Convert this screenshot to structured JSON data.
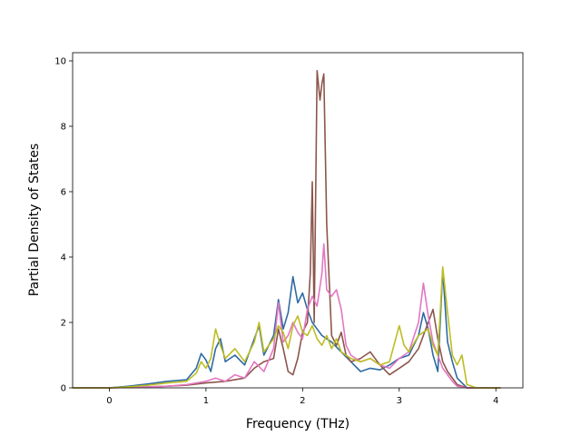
{
  "chart_data": {
    "type": "line",
    "xlabel": "Frequency (THz)",
    "ylabel": "Partial Density of States",
    "xlim": [
      -0.38,
      4.28
    ],
    "ylim": [
      0,
      10.25
    ],
    "xticks": [
      {
        "value": 0,
        "label": "0"
      },
      {
        "value": 1,
        "label": "1"
      },
      {
        "value": 2,
        "label": "2"
      },
      {
        "value": 3,
        "label": "3"
      },
      {
        "value": 4,
        "label": "4"
      }
    ],
    "yticks": [
      {
        "value": 0,
        "label": "0"
      },
      {
        "value": 2,
        "label": "2"
      },
      {
        "value": 4,
        "label": "4"
      },
      {
        "value": 6,
        "label": "6"
      },
      {
        "value": 8,
        "label": "8"
      },
      {
        "value": 10,
        "label": "10"
      }
    ],
    "grid": false,
    "legend": "none",
    "series": [
      {
        "color": "#2f6aa3",
        "points": [
          [
            -0.38,
            0
          ],
          [
            0,
            0
          ],
          [
            0.2,
            0.05
          ],
          [
            0.4,
            0.12
          ],
          [
            0.6,
            0.2
          ],
          [
            0.8,
            0.25
          ],
          [
            0.9,
            0.6
          ],
          [
            0.95,
            1.05
          ],
          [
            1.0,
            0.85
          ],
          [
            1.05,
            0.5
          ],
          [
            1.1,
            1.2
          ],
          [
            1.15,
            1.5
          ],
          [
            1.2,
            0.8
          ],
          [
            1.3,
            1.0
          ],
          [
            1.4,
            0.7
          ],
          [
            1.5,
            1.5
          ],
          [
            1.55,
            1.9
          ],
          [
            1.6,
            1.0
          ],
          [
            1.7,
            1.6
          ],
          [
            1.75,
            2.7
          ],
          [
            1.8,
            1.8
          ],
          [
            1.85,
            2.3
          ],
          [
            1.9,
            3.4
          ],
          [
            1.95,
            2.6
          ],
          [
            2.0,
            2.9
          ],
          [
            2.05,
            2.4
          ],
          [
            2.1,
            2.0
          ],
          [
            2.15,
            1.8
          ],
          [
            2.2,
            1.6
          ],
          [
            2.25,
            1.5
          ],
          [
            2.3,
            1.4
          ],
          [
            2.4,
            1.1
          ],
          [
            2.5,
            0.8
          ],
          [
            2.6,
            0.5
          ],
          [
            2.7,
            0.6
          ],
          [
            2.8,
            0.55
          ],
          [
            2.9,
            0.7
          ],
          [
            3.0,
            0.9
          ],
          [
            3.1,
            1.0
          ],
          [
            3.2,
            1.6
          ],
          [
            3.25,
            2.3
          ],
          [
            3.3,
            1.8
          ],
          [
            3.35,
            1.0
          ],
          [
            3.4,
            0.5
          ],
          [
            3.45,
            3.6
          ],
          [
            3.5,
            1.4
          ],
          [
            3.55,
            0.8
          ],
          [
            3.6,
            0.3
          ],
          [
            3.7,
            0
          ],
          [
            4.05,
            0
          ]
        ]
      },
      {
        "color": "#8c564b",
        "points": [
          [
            -0.38,
            0
          ],
          [
            0,
            0
          ],
          [
            0.3,
            0.02
          ],
          [
            0.6,
            0.05
          ],
          [
            0.8,
            0.08
          ],
          [
            1.0,
            0.15
          ],
          [
            1.2,
            0.2
          ],
          [
            1.4,
            0.3
          ],
          [
            1.5,
            0.6
          ],
          [
            1.6,
            0.8
          ],
          [
            1.7,
            0.9
          ],
          [
            1.75,
            1.8
          ],
          [
            1.8,
            1.2
          ],
          [
            1.85,
            0.5
          ],
          [
            1.9,
            0.4
          ],
          [
            1.95,
            0.9
          ],
          [
            2.0,
            1.7
          ],
          [
            2.05,
            2.0
          ],
          [
            2.08,
            3.5
          ],
          [
            2.1,
            6.3
          ],
          [
            2.12,
            2.0
          ],
          [
            2.15,
            9.7
          ],
          [
            2.18,
            8.8
          ],
          [
            2.2,
            9.3
          ],
          [
            2.22,
            9.6
          ],
          [
            2.25,
            5.0
          ],
          [
            2.3,
            1.6
          ],
          [
            2.35,
            1.3
          ],
          [
            2.4,
            1.7
          ],
          [
            2.45,
            1.0
          ],
          [
            2.5,
            0.8
          ],
          [
            2.6,
            0.9
          ],
          [
            2.7,
            1.1
          ],
          [
            2.8,
            0.7
          ],
          [
            2.9,
            0.4
          ],
          [
            3.0,
            0.6
          ],
          [
            3.1,
            0.8
          ],
          [
            3.2,
            1.2
          ],
          [
            3.3,
            2.0
          ],
          [
            3.35,
            2.4
          ],
          [
            3.4,
            1.5
          ],
          [
            3.45,
            0.8
          ],
          [
            3.5,
            0.5
          ],
          [
            3.6,
            0.1
          ],
          [
            3.7,
            0
          ],
          [
            4.05,
            0
          ]
        ]
      },
      {
        "color": "#e377c2",
        "points": [
          [
            -0.38,
            0
          ],
          [
            0,
            0
          ],
          [
            0.3,
            0.02
          ],
          [
            0.6,
            0.05
          ],
          [
            0.8,
            0.1
          ],
          [
            1.0,
            0.2
          ],
          [
            1.1,
            0.3
          ],
          [
            1.2,
            0.2
          ],
          [
            1.3,
            0.4
          ],
          [
            1.4,
            0.3
          ],
          [
            1.5,
            0.8
          ],
          [
            1.6,
            0.5
          ],
          [
            1.7,
            1.2
          ],
          [
            1.75,
            2.6
          ],
          [
            1.8,
            1.4
          ],
          [
            1.85,
            1.6
          ],
          [
            1.9,
            2.0
          ],
          [
            1.95,
            1.7
          ],
          [
            2.0,
            1.5
          ],
          [
            2.05,
            2.4
          ],
          [
            2.1,
            2.8
          ],
          [
            2.15,
            2.5
          ],
          [
            2.2,
            3.5
          ],
          [
            2.22,
            4.4
          ],
          [
            2.25,
            3.0
          ],
          [
            2.3,
            2.8
          ],
          [
            2.35,
            3.0
          ],
          [
            2.4,
            2.4
          ],
          [
            2.45,
            1.3
          ],
          [
            2.5,
            1.0
          ],
          [
            2.6,
            0.8
          ],
          [
            2.7,
            0.9
          ],
          [
            2.8,
            0.7
          ],
          [
            2.9,
            0.6
          ],
          [
            3.0,
            0.9
          ],
          [
            3.1,
            1.1
          ],
          [
            3.2,
            2.0
          ],
          [
            3.25,
            3.2
          ],
          [
            3.3,
            2.2
          ],
          [
            3.35,
            1.4
          ],
          [
            3.4,
            1.0
          ],
          [
            3.45,
            0.6
          ],
          [
            3.5,
            0.4
          ],
          [
            3.55,
            0.2
          ],
          [
            3.6,
            0.05
          ],
          [
            3.7,
            0
          ],
          [
            4.05,
            0
          ]
        ]
      },
      {
        "color": "#bcbd22",
        "points": [
          [
            -0.38,
            0
          ],
          [
            0,
            0
          ],
          [
            0.2,
            0.03
          ],
          [
            0.4,
            0.08
          ],
          [
            0.6,
            0.15
          ],
          [
            0.8,
            0.2
          ],
          [
            0.9,
            0.45
          ],
          [
            0.95,
            0.8
          ],
          [
            1.0,
            0.6
          ],
          [
            1.05,
            0.9
          ],
          [
            1.1,
            1.8
          ],
          [
            1.15,
            1.3
          ],
          [
            1.2,
            0.9
          ],
          [
            1.3,
            1.2
          ],
          [
            1.4,
            0.8
          ],
          [
            1.5,
            1.4
          ],
          [
            1.55,
            2.0
          ],
          [
            1.6,
            1.1
          ],
          [
            1.7,
            1.5
          ],
          [
            1.75,
            1.9
          ],
          [
            1.8,
            1.7
          ],
          [
            1.85,
            1.2
          ],
          [
            1.9,
            1.9
          ],
          [
            1.95,
            2.2
          ],
          [
            2.0,
            1.7
          ],
          [
            2.05,
            1.6
          ],
          [
            2.1,
            1.9
          ],
          [
            2.15,
            1.5
          ],
          [
            2.2,
            1.3
          ],
          [
            2.25,
            1.6
          ],
          [
            2.3,
            1.2
          ],
          [
            2.35,
            1.5
          ],
          [
            2.4,
            1.1
          ],
          [
            2.5,
            0.9
          ],
          [
            2.6,
            0.8
          ],
          [
            2.7,
            0.9
          ],
          [
            2.8,
            0.7
          ],
          [
            2.9,
            0.8
          ],
          [
            3.0,
            1.9
          ],
          [
            3.05,
            1.3
          ],
          [
            3.1,
            1.1
          ],
          [
            3.2,
            1.6
          ],
          [
            3.3,
            1.8
          ],
          [
            3.35,
            1.3
          ],
          [
            3.4,
            1.0
          ],
          [
            3.45,
            3.7
          ],
          [
            3.5,
            2.3
          ],
          [
            3.55,
            1.0
          ],
          [
            3.6,
            0.7
          ],
          [
            3.65,
            1.0
          ],
          [
            3.7,
            0.1
          ],
          [
            3.8,
            0
          ],
          [
            4.05,
            0
          ]
        ]
      }
    ]
  }
}
